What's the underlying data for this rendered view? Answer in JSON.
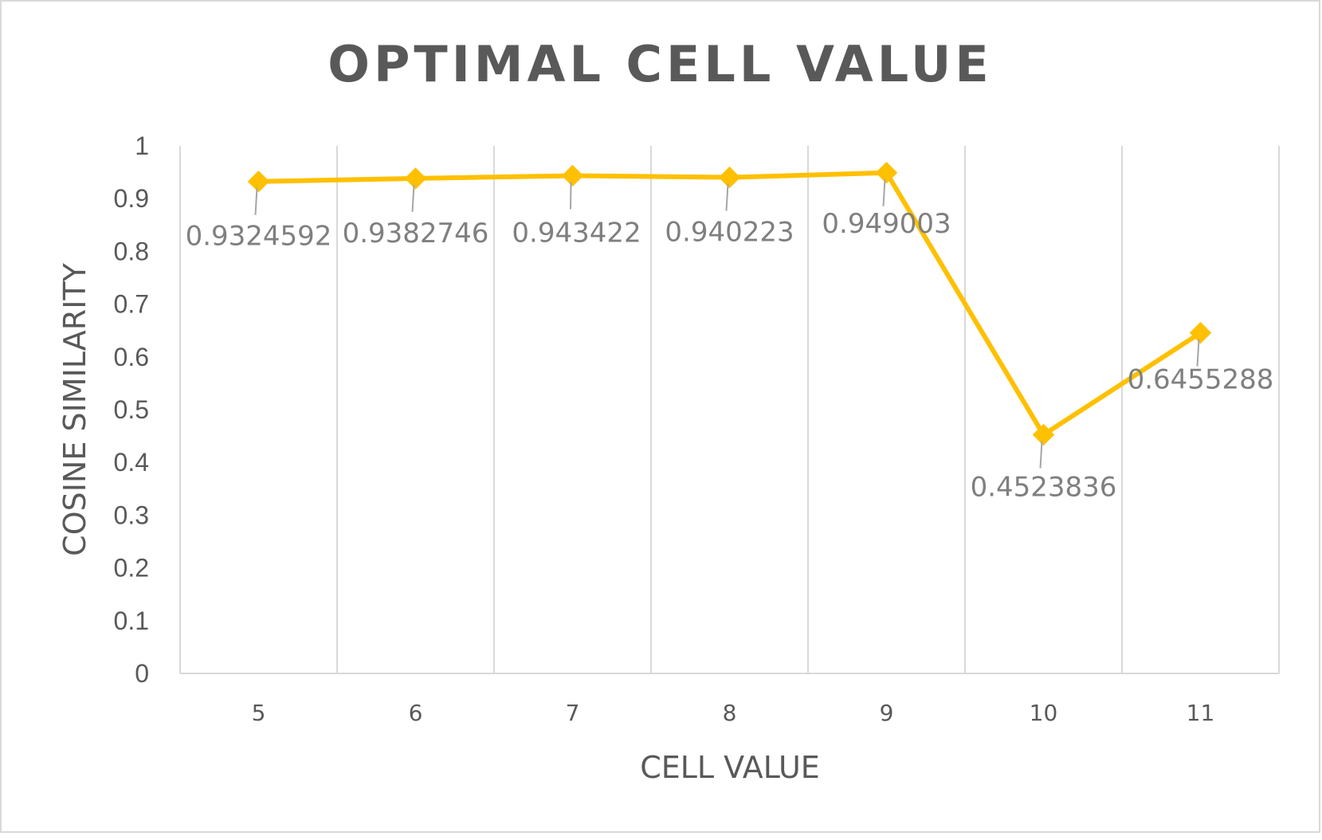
{
  "chart_data": {
    "type": "line",
    "title": "OPTIMAL CELL VALUE",
    "xlabel": "CELL VALUE",
    "ylabel": "COSINE SIMILARITY",
    "categories": [
      "5",
      "6",
      "7",
      "8",
      "9",
      "10",
      "11"
    ],
    "series": [
      {
        "values": [
          0.9324592,
          0.9382746,
          0.943422,
          0.940223,
          0.949003,
          0.4523836,
          0.6455288
        ],
        "labels": [
          "0.9324592",
          "0.9382746",
          "0.943422",
          "0.940223",
          "0.949003",
          "0.4523836",
          "0.6455288"
        ],
        "color": "#FFC000",
        "marker": "diamond"
      }
    ],
    "ylim": [
      0,
      1
    ],
    "yticks": [
      "0",
      "0.1",
      "0.2",
      "0.3",
      "0.4",
      "0.5",
      "0.6",
      "0.7",
      "0.8",
      "0.9",
      "1"
    ],
    "grid": "vertical",
    "gridColor": "#d9d9d9",
    "labelColor": "#7f7f7f"
  }
}
